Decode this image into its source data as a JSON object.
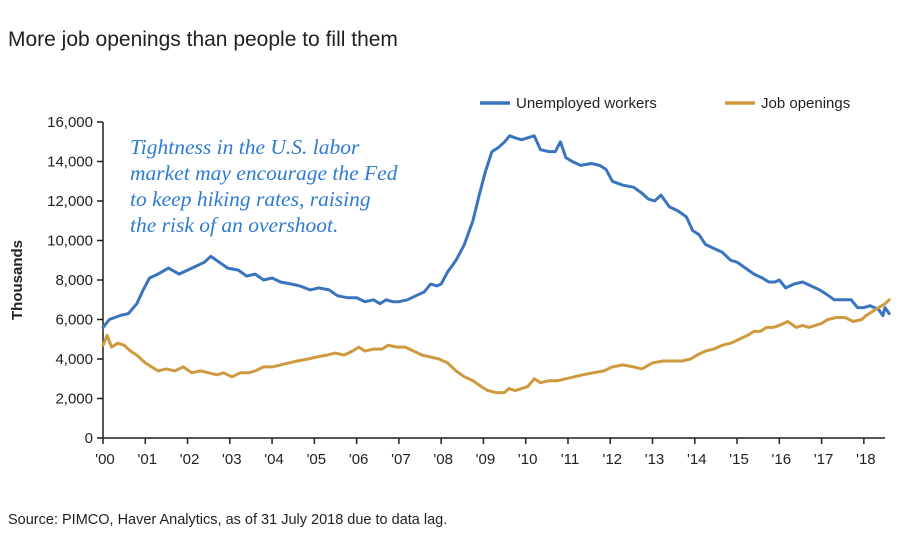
{
  "title": "More job openings than people to fill them",
  "annotation": [
    "Tightness in the U.S. labor",
    "market may encourage the Fed",
    "to keep hiking rates, raising",
    "the risk of an overshoot."
  ],
  "source": "Source: PIMCO, Haver Analytics, as of 31 July 2018 due to data lag.",
  "colors": {
    "unemployed": "#3a74bf",
    "openings": "#cf9a3f",
    "annotation": "#2e7bd0",
    "axis": "#231f20"
  },
  "chart_data": {
    "type": "line",
    "title": "More job openings than people to fill them",
    "ylabel": "Thousands",
    "xlabel": "",
    "ylim": [
      0,
      16000
    ],
    "xlim": [
      2000.0,
      2018.5
    ],
    "yticks": [
      0,
      2000,
      4000,
      6000,
      8000,
      10000,
      12000,
      14000,
      16000
    ],
    "ytick_labels": [
      "0",
      "2,000",
      "4,000",
      "6,000",
      "8,000",
      "10,000",
      "12,000",
      "14,000",
      "16,000"
    ],
    "xticks": [
      2000,
      2001,
      2002,
      2003,
      2004,
      2005,
      2006,
      2007,
      2008,
      2009,
      2010,
      2011,
      2012,
      2013,
      2014,
      2015,
      2016,
      2017,
      2018
    ],
    "xtick_labels": [
      "'00",
      "'01",
      "'02",
      "'03",
      "'04",
      "'05",
      "'06",
      "'07",
      "'08",
      "'09",
      "'10",
      "'11",
      "'12",
      "'13",
      "'14",
      "'15",
      "'16",
      "'17",
      "'18"
    ],
    "grid": false,
    "legend_position": "top-right",
    "series": [
      {
        "name": "Unemployed workers",
        "color": "#3a74bf",
        "points": [
          [
            2000.0,
            5600
          ],
          [
            2000.15,
            6000
          ],
          [
            2000.4,
            6200
          ],
          [
            2000.6,
            6300
          ],
          [
            2000.8,
            6800
          ],
          [
            2000.95,
            7500
          ],
          [
            2001.1,
            8100
          ],
          [
            2001.3,
            8300
          ],
          [
            2001.55,
            8600
          ],
          [
            2001.8,
            8300
          ],
          [
            2002.0,
            8500
          ],
          [
            2002.2,
            8700
          ],
          [
            2002.4,
            8900
          ],
          [
            2002.55,
            9200
          ],
          [
            2002.75,
            8900
          ],
          [
            2002.95,
            8600
          ],
          [
            2003.2,
            8500
          ],
          [
            2003.4,
            8200
          ],
          [
            2003.6,
            8300
          ],
          [
            2003.8,
            8000
          ],
          [
            2004.0,
            8100
          ],
          [
            2004.2,
            7900
          ],
          [
            2004.45,
            7800
          ],
          [
            2004.65,
            7700
          ],
          [
            2004.9,
            7500
          ],
          [
            2005.1,
            7600
          ],
          [
            2005.35,
            7500
          ],
          [
            2005.55,
            7200
          ],
          [
            2005.8,
            7100
          ],
          [
            2006.0,
            7100
          ],
          [
            2006.2,
            6900
          ],
          [
            2006.4,
            7000
          ],
          [
            2006.55,
            6800
          ],
          [
            2006.7,
            7000
          ],
          [
            2006.85,
            6900
          ],
          [
            2007.0,
            6900
          ],
          [
            2007.2,
            7000
          ],
          [
            2007.4,
            7200
          ],
          [
            2007.6,
            7400
          ],
          [
            2007.75,
            7800
          ],
          [
            2007.9,
            7700
          ],
          [
            2008.0,
            7800
          ],
          [
            2008.15,
            8400
          ],
          [
            2008.35,
            9000
          ],
          [
            2008.55,
            9800
          ],
          [
            2008.75,
            11000
          ],
          [
            2008.9,
            12300
          ],
          [
            2009.05,
            13500
          ],
          [
            2009.2,
            14500
          ],
          [
            2009.35,
            14700
          ],
          [
            2009.5,
            15000
          ],
          [
            2009.62,
            15300
          ],
          [
            2009.75,
            15200
          ],
          [
            2009.9,
            15100
          ],
          [
            2010.05,
            15200
          ],
          [
            2010.2,
            15300
          ],
          [
            2010.35,
            14600
          ],
          [
            2010.55,
            14500
          ],
          [
            2010.7,
            14500
          ],
          [
            2010.82,
            15000
          ],
          [
            2010.95,
            14200
          ],
          [
            2011.1,
            14000
          ],
          [
            2011.3,
            13800
          ],
          [
            2011.55,
            13900
          ],
          [
            2011.75,
            13800
          ],
          [
            2011.9,
            13600
          ],
          [
            2012.05,
            13000
          ],
          [
            2012.3,
            12800
          ],
          [
            2012.55,
            12700
          ],
          [
            2012.75,
            12400
          ],
          [
            2012.9,
            12100
          ],
          [
            2013.05,
            12000
          ],
          [
            2013.2,
            12300
          ],
          [
            2013.4,
            11700
          ],
          [
            2013.6,
            11500
          ],
          [
            2013.8,
            11200
          ],
          [
            2013.95,
            10500
          ],
          [
            2014.1,
            10300
          ],
          [
            2014.25,
            9800
          ],
          [
            2014.45,
            9600
          ],
          [
            2014.65,
            9400
          ],
          [
            2014.85,
            9000
          ],
          [
            2015.0,
            8900
          ],
          [
            2015.2,
            8600
          ],
          [
            2015.4,
            8300
          ],
          [
            2015.6,
            8100
          ],
          [
            2015.75,
            7900
          ],
          [
            2015.9,
            7900
          ],
          [
            2016.0,
            8000
          ],
          [
            2016.15,
            7600
          ],
          [
            2016.35,
            7800
          ],
          [
            2016.55,
            7900
          ],
          [
            2016.75,
            7700
          ],
          [
            2016.95,
            7500
          ],
          [
            2017.1,
            7300
          ],
          [
            2017.3,
            7000
          ],
          [
            2017.5,
            7000
          ],
          [
            2017.7,
            7000
          ],
          [
            2017.85,
            6600
          ],
          [
            2018.0,
            6600
          ],
          [
            2018.15,
            6700
          ],
          [
            2018.25,
            6600
          ],
          [
            2018.35,
            6500
          ],
          [
            2018.45,
            6200
          ],
          [
            2018.5,
            6600
          ],
          [
            2018.6,
            6300
          ]
        ]
      },
      {
        "name": "Job openings",
        "color": "#cf9a3f",
        "points": [
          [
            2000.0,
            4700
          ],
          [
            2000.1,
            5200
          ],
          [
            2000.2,
            4600
          ],
          [
            2000.35,
            4800
          ],
          [
            2000.5,
            4700
          ],
          [
            2000.65,
            4400
          ],
          [
            2000.8,
            4200
          ],
          [
            2001.0,
            3800
          ],
          [
            2001.15,
            3600
          ],
          [
            2001.3,
            3400
          ],
          [
            2001.5,
            3500
          ],
          [
            2001.7,
            3400
          ],
          [
            2001.9,
            3600
          ],
          [
            2002.1,
            3300
          ],
          [
            2002.3,
            3400
          ],
          [
            2002.5,
            3300
          ],
          [
            2002.7,
            3200
          ],
          [
            2002.85,
            3300
          ],
          [
            2003.05,
            3100
          ],
          [
            2003.25,
            3300
          ],
          [
            2003.45,
            3300
          ],
          [
            2003.6,
            3400
          ],
          [
            2003.8,
            3600
          ],
          [
            2004.0,
            3600
          ],
          [
            2004.2,
            3700
          ],
          [
            2004.4,
            3800
          ],
          [
            2004.6,
            3900
          ],
          [
            2004.85,
            4000
          ],
          [
            2005.05,
            4100
          ],
          [
            2005.3,
            4200
          ],
          [
            2005.5,
            4300
          ],
          [
            2005.7,
            4200
          ],
          [
            2005.9,
            4400
          ],
          [
            2006.05,
            4600
          ],
          [
            2006.2,
            4400
          ],
          [
            2006.4,
            4500
          ],
          [
            2006.6,
            4500
          ],
          [
            2006.75,
            4700
          ],
          [
            2006.95,
            4600
          ],
          [
            2007.15,
            4600
          ],
          [
            2007.35,
            4400
          ],
          [
            2007.55,
            4200
          ],
          [
            2007.75,
            4100
          ],
          [
            2007.95,
            4000
          ],
          [
            2008.15,
            3800
          ],
          [
            2008.35,
            3400
          ],
          [
            2008.55,
            3100
          ],
          [
            2008.75,
            2900
          ],
          [
            2008.95,
            2600
          ],
          [
            2009.1,
            2400
          ],
          [
            2009.3,
            2300
          ],
          [
            2009.5,
            2300
          ],
          [
            2009.6,
            2500
          ],
          [
            2009.75,
            2400
          ],
          [
            2009.9,
            2500
          ],
          [
            2010.05,
            2600
          ],
          [
            2010.2,
            3000
          ],
          [
            2010.35,
            2800
          ],
          [
            2010.55,
            2900
          ],
          [
            2010.75,
            2900
          ],
          [
            2010.95,
            3000
          ],
          [
            2011.15,
            3100
          ],
          [
            2011.35,
            3200
          ],
          [
            2011.6,
            3300
          ],
          [
            2011.85,
            3400
          ],
          [
            2012.05,
            3600
          ],
          [
            2012.3,
            3700
          ],
          [
            2012.55,
            3600
          ],
          [
            2012.75,
            3500
          ],
          [
            2013.0,
            3800
          ],
          [
            2013.25,
            3900
          ],
          [
            2013.5,
            3900
          ],
          [
            2013.7,
            3900
          ],
          [
            2013.9,
            4000
          ],
          [
            2014.05,
            4200
          ],
          [
            2014.25,
            4400
          ],
          [
            2014.45,
            4500
          ],
          [
            2014.65,
            4700
          ],
          [
            2014.85,
            4800
          ],
          [
            2015.05,
            5000
          ],
          [
            2015.25,
            5200
          ],
          [
            2015.4,
            5400
          ],
          [
            2015.55,
            5400
          ],
          [
            2015.7,
            5600
          ],
          [
            2015.85,
            5600
          ],
          [
            2016.0,
            5700
          ],
          [
            2016.2,
            5900
          ],
          [
            2016.4,
            5600
          ],
          [
            2016.55,
            5700
          ],
          [
            2016.7,
            5600
          ],
          [
            2016.85,
            5700
          ],
          [
            2017.0,
            5800
          ],
          [
            2017.15,
            6000
          ],
          [
            2017.35,
            6100
          ],
          [
            2017.55,
            6100
          ],
          [
            2017.75,
            5900
          ],
          [
            2017.95,
            6000
          ],
          [
            2018.05,
            6200
          ],
          [
            2018.2,
            6400
          ],
          [
            2018.35,
            6600
          ],
          [
            2018.5,
            6800
          ],
          [
            2018.6,
            7000
          ]
        ]
      }
    ]
  }
}
